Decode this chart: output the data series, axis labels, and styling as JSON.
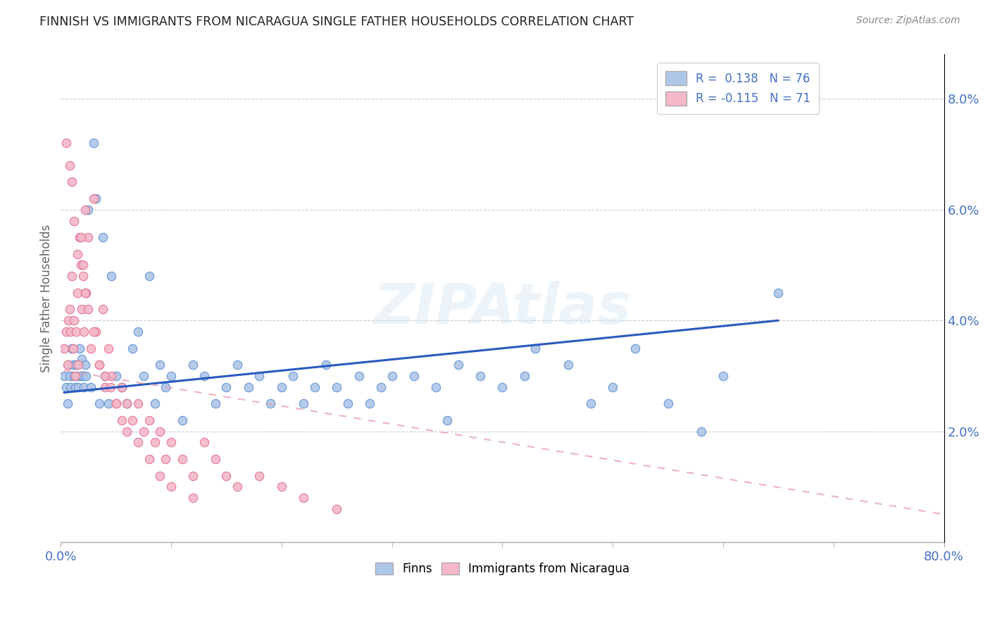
{
  "title": "FINNISH VS IMMIGRANTS FROM NICARAGUA SINGLE FATHER HOUSEHOLDS CORRELATION CHART",
  "source": "Source: ZipAtlas.com",
  "ylabel": "Single Father Households",
  "y_ticks": [
    0.02,
    0.04,
    0.06,
    0.08
  ],
  "y_tick_labels": [
    "2.0%",
    "4.0%",
    "6.0%",
    "8.0%"
  ],
  "x_lim": [
    0.0,
    0.8
  ],
  "y_lim": [
    0.0,
    0.088
  ],
  "legend_r1": "R =  0.138",
  "legend_n1": "N = 76",
  "legend_r2": "R = -0.115",
  "legend_n2": "N = 71",
  "color_blue_fill": "#aec6e8",
  "color_blue_edge": "#5b8fd4",
  "color_pink_fill": "#f5b8c8",
  "color_pink_edge": "#e07090",
  "color_blue_line": "#2a5abf",
  "color_pink_line": "#e8a0b0",
  "finns_x": [
    0.003,
    0.005,
    0.006,
    0.007,
    0.008,
    0.009,
    0.01,
    0.011,
    0.012,
    0.013,
    0.014,
    0.015,
    0.016,
    0.017,
    0.018,
    0.019,
    0.02,
    0.021,
    0.022,
    0.023,
    0.025,
    0.027,
    0.03,
    0.032,
    0.035,
    0.038,
    0.04,
    0.043,
    0.046,
    0.05,
    0.055,
    0.06,
    0.065,
    0.07,
    0.075,
    0.08,
    0.085,
    0.09,
    0.095,
    0.1,
    0.11,
    0.12,
    0.13,
    0.14,
    0.15,
    0.16,
    0.17,
    0.18,
    0.19,
    0.2,
    0.21,
    0.22,
    0.23,
    0.24,
    0.25,
    0.26,
    0.27,
    0.28,
    0.29,
    0.3,
    0.32,
    0.34,
    0.36,
    0.38,
    0.4,
    0.43,
    0.46,
    0.5,
    0.55,
    0.6,
    0.35,
    0.42,
    0.48,
    0.52,
    0.58,
    0.65
  ],
  "finns_y": [
    0.03,
    0.028,
    0.025,
    0.032,
    0.03,
    0.028,
    0.035,
    0.032,
    0.03,
    0.028,
    0.032,
    0.03,
    0.028,
    0.035,
    0.03,
    0.033,
    0.03,
    0.028,
    0.032,
    0.03,
    0.06,
    0.028,
    0.072,
    0.062,
    0.025,
    0.055,
    0.03,
    0.025,
    0.048,
    0.03,
    0.028,
    0.025,
    0.035,
    0.038,
    0.03,
    0.048,
    0.025,
    0.032,
    0.028,
    0.03,
    0.022,
    0.032,
    0.03,
    0.025,
    0.028,
    0.032,
    0.028,
    0.03,
    0.025,
    0.028,
    0.03,
    0.025,
    0.028,
    0.032,
    0.028,
    0.025,
    0.03,
    0.025,
    0.028,
    0.03,
    0.03,
    0.028,
    0.032,
    0.03,
    0.028,
    0.035,
    0.032,
    0.028,
    0.025,
    0.03,
    0.022,
    0.03,
    0.025,
    0.035,
    0.02,
    0.045
  ],
  "nicaragua_x": [
    0.003,
    0.005,
    0.006,
    0.007,
    0.008,
    0.009,
    0.01,
    0.011,
    0.012,
    0.013,
    0.014,
    0.015,
    0.016,
    0.017,
    0.018,
    0.019,
    0.02,
    0.021,
    0.022,
    0.023,
    0.025,
    0.027,
    0.03,
    0.032,
    0.035,
    0.038,
    0.04,
    0.043,
    0.046,
    0.05,
    0.055,
    0.06,
    0.065,
    0.07,
    0.075,
    0.08,
    0.085,
    0.09,
    0.095,
    0.1,
    0.11,
    0.12,
    0.13,
    0.14,
    0.15,
    0.16,
    0.18,
    0.2,
    0.22,
    0.25,
    0.005,
    0.008,
    0.01,
    0.012,
    0.015,
    0.018,
    0.02,
    0.022,
    0.025,
    0.03,
    0.035,
    0.04,
    0.045,
    0.05,
    0.055,
    0.06,
    0.07,
    0.08,
    0.09,
    0.1,
    0.12
  ],
  "nicaragua_y": [
    0.035,
    0.038,
    0.032,
    0.04,
    0.042,
    0.038,
    0.048,
    0.035,
    0.04,
    0.03,
    0.038,
    0.045,
    0.032,
    0.055,
    0.05,
    0.042,
    0.048,
    0.038,
    0.06,
    0.045,
    0.055,
    0.035,
    0.062,
    0.038,
    0.032,
    0.042,
    0.028,
    0.035,
    0.03,
    0.025,
    0.028,
    0.025,
    0.022,
    0.025,
    0.02,
    0.022,
    0.018,
    0.02,
    0.015,
    0.018,
    0.015,
    0.012,
    0.018,
    0.015,
    0.012,
    0.01,
    0.012,
    0.01,
    0.008,
    0.006,
    0.072,
    0.068,
    0.065,
    0.058,
    0.052,
    0.055,
    0.05,
    0.045,
    0.042,
    0.038,
    0.032,
    0.03,
    0.028,
    0.025,
    0.022,
    0.02,
    0.018,
    0.015,
    0.012,
    0.01,
    0.008
  ],
  "finns_line_x": [
    0.003,
    0.65
  ],
  "finns_line_y": [
    0.027,
    0.04
  ],
  "nicaragua_line_x": [
    0.003,
    0.8
  ],
  "nicaragua_line_y": [
    0.031,
    0.005
  ]
}
